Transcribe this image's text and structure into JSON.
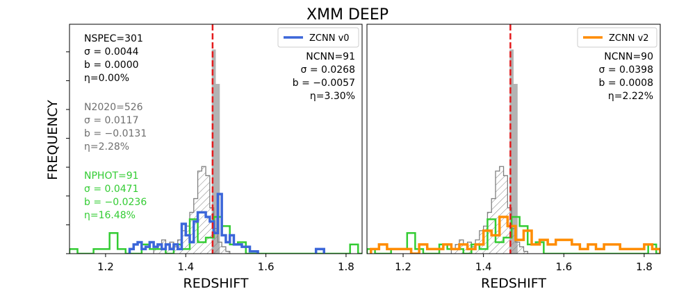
{
  "figure": {
    "title": "XMM DEEP",
    "ylabel": "FREQUENCY"
  },
  "colors": {
    "spec": "#b3b3b3",
    "n2020": "#7f7f7f",
    "phot": "#33cc33",
    "zcnn_v0": "#3b66d9",
    "zcnn_v2": "#ff8c00",
    "ref_line": "#e41a1c"
  },
  "chart_data": [
    {
      "type": "histogram",
      "panel": "left",
      "xlabel": "REDSHIFT",
      "ylabel": "FREQUENCY",
      "xlim": [
        1.11,
        1.84
      ],
      "ylim": [
        0,
        1.0
      ],
      "xticks": [
        "1.2",
        "1.4",
        "1.6",
        "1.8"
      ],
      "xtick_values": [
        1.2,
        1.4,
        1.6,
        1.8
      ],
      "ref_line": 1.467,
      "legend": {
        "label": "ZCNN v0",
        "color": "#3b66d9",
        "position": "top-right"
      },
      "stats_left": [
        {
          "group": "spec",
          "color": "#000000",
          "lines": [
            "NSPEC=301",
            "σ = 0.0044",
            "b = 0.0000",
            "η=0.00%"
          ]
        },
        {
          "group": "n2020",
          "color": "#6e6e6e",
          "lines": [
            "N2020=526",
            "σ = 0.0117",
            "b = −0.0131",
            "η=2.28%"
          ]
        },
        {
          "group": "phot",
          "color": "#33cc33",
          "lines": [
            "NPHOT=91",
            "σ = 0.0471",
            "b = −0.0236",
            "η=16.48%"
          ]
        }
      ],
      "stats_right": [
        "NCNN=91",
        "σ = 0.0268",
        "b = −0.0057",
        "η=3.30%"
      ],
      "spec_bins": {
        "start": 1.455,
        "width": 0.01,
        "values": [
          0.0,
          0.89,
          0.74,
          0.0
        ]
      },
      "n2020_bins": {
        "start": 1.32,
        "width": 0.01,
        "values": [
          0.02,
          0.04,
          0.06,
          0.04,
          0.05,
          0.03,
          0.06,
          0.1,
          0.12,
          0.18,
          0.24,
          0.36,
          0.38,
          0.34,
          0.2,
          0.11,
          0.05,
          0.03,
          0.01
        ]
      },
      "phot_bins": {
        "start": 1.11,
        "width": 0.02,
        "values": [
          0.02,
          0.0,
          0.0,
          0.02,
          0.02,
          0.09,
          0.02,
          0.0,
          0.0,
          0.04,
          0.02,
          0.02,
          0.0,
          0.04,
          0.02,
          0.15,
          0.05,
          0.07,
          0.16,
          0.12,
          0.04,
          0.05,
          0.0,
          0.0,
          0.0,
          0.0,
          0.0,
          0.0,
          0.0,
          0.0,
          0.0,
          0.0,
          0.0,
          0.0,
          0.0,
          0.04,
          0.0
        ]
      },
      "zcnn_bins": {
        "start": 1.26,
        "width": 0.01,
        "values": [
          0.02,
          0.04,
          0.05,
          0.02,
          0.03,
          0.05,
          0.03,
          0.04,
          0.02,
          0.04,
          0.02,
          0.04,
          0.02,
          0.13,
          0.08,
          0.05,
          0.14,
          0.18,
          0.18,
          0.16,
          0.14,
          0.09,
          0.26,
          0.08,
          0.05,
          0.08,
          0.04,
          0.04,
          0.03,
          0.03,
          0.01,
          0.01
        ]
      },
      "zcnn_extra": [
        {
          "x0": 1.725,
          "x1": 1.745,
          "value": 0.02
        }
      ]
    },
    {
      "type": "histogram",
      "panel": "right",
      "xlabel": "REDSHIFT",
      "xlim": [
        1.11,
        1.84
      ],
      "ylim": [
        0,
        1.0
      ],
      "xticks": [
        "1.2",
        "1.4",
        "1.6",
        "1.8"
      ],
      "xtick_values": [
        1.2,
        1.4,
        1.6,
        1.8
      ],
      "ref_line": 1.467,
      "legend": {
        "label": "ZCNN v2",
        "color": "#ff8c00",
        "position": "top-right"
      },
      "stats_right": [
        "NCNN=90",
        "σ = 0.0398",
        "b = 0.0008",
        "η=2.22%"
      ],
      "spec_bins": {
        "start": 1.455,
        "width": 0.01,
        "values": [
          0.0,
          0.89,
          0.74,
          0.0
        ]
      },
      "n2020_bins": {
        "start": 1.32,
        "width": 0.01,
        "values": [
          0.02,
          0.04,
          0.06,
          0.04,
          0.05,
          0.03,
          0.06,
          0.1,
          0.12,
          0.18,
          0.24,
          0.36,
          0.38,
          0.34,
          0.2,
          0.11,
          0.05,
          0.03,
          0.01
        ]
      },
      "phot_bins": {
        "start": 1.11,
        "width": 0.02,
        "values": [
          0.02,
          0.0,
          0.0,
          0.02,
          0.02,
          0.09,
          0.02,
          0.0,
          0.0,
          0.04,
          0.02,
          0.02,
          0.0,
          0.04,
          0.02,
          0.15,
          0.05,
          0.07,
          0.16,
          0.12,
          0.04,
          0.05,
          0.0,
          0.0,
          0.0,
          0.0,
          0.0,
          0.0,
          0.0,
          0.0,
          0.0,
          0.0,
          0.0,
          0.0,
          0.0,
          0.04,
          0.0
        ]
      },
      "zcnn_bins": {
        "start": 1.12,
        "width": 0.02,
        "values": [
          0.02,
          0.04,
          0.02,
          0.02,
          0.02,
          0.0,
          0.04,
          0.02,
          0.02,
          0.04,
          0.02,
          0.04,
          0.02,
          0.04,
          0.1,
          0.08,
          0.16,
          0.12,
          0.06,
          0.1,
          0.04,
          0.06,
          0.04,
          0.06,
          0.06,
          0.04,
          0.02,
          0.04,
          0.02,
          0.04,
          0.04,
          0.02,
          0.02,
          0.02,
          0.04,
          0.02
        ]
      }
    }
  ]
}
